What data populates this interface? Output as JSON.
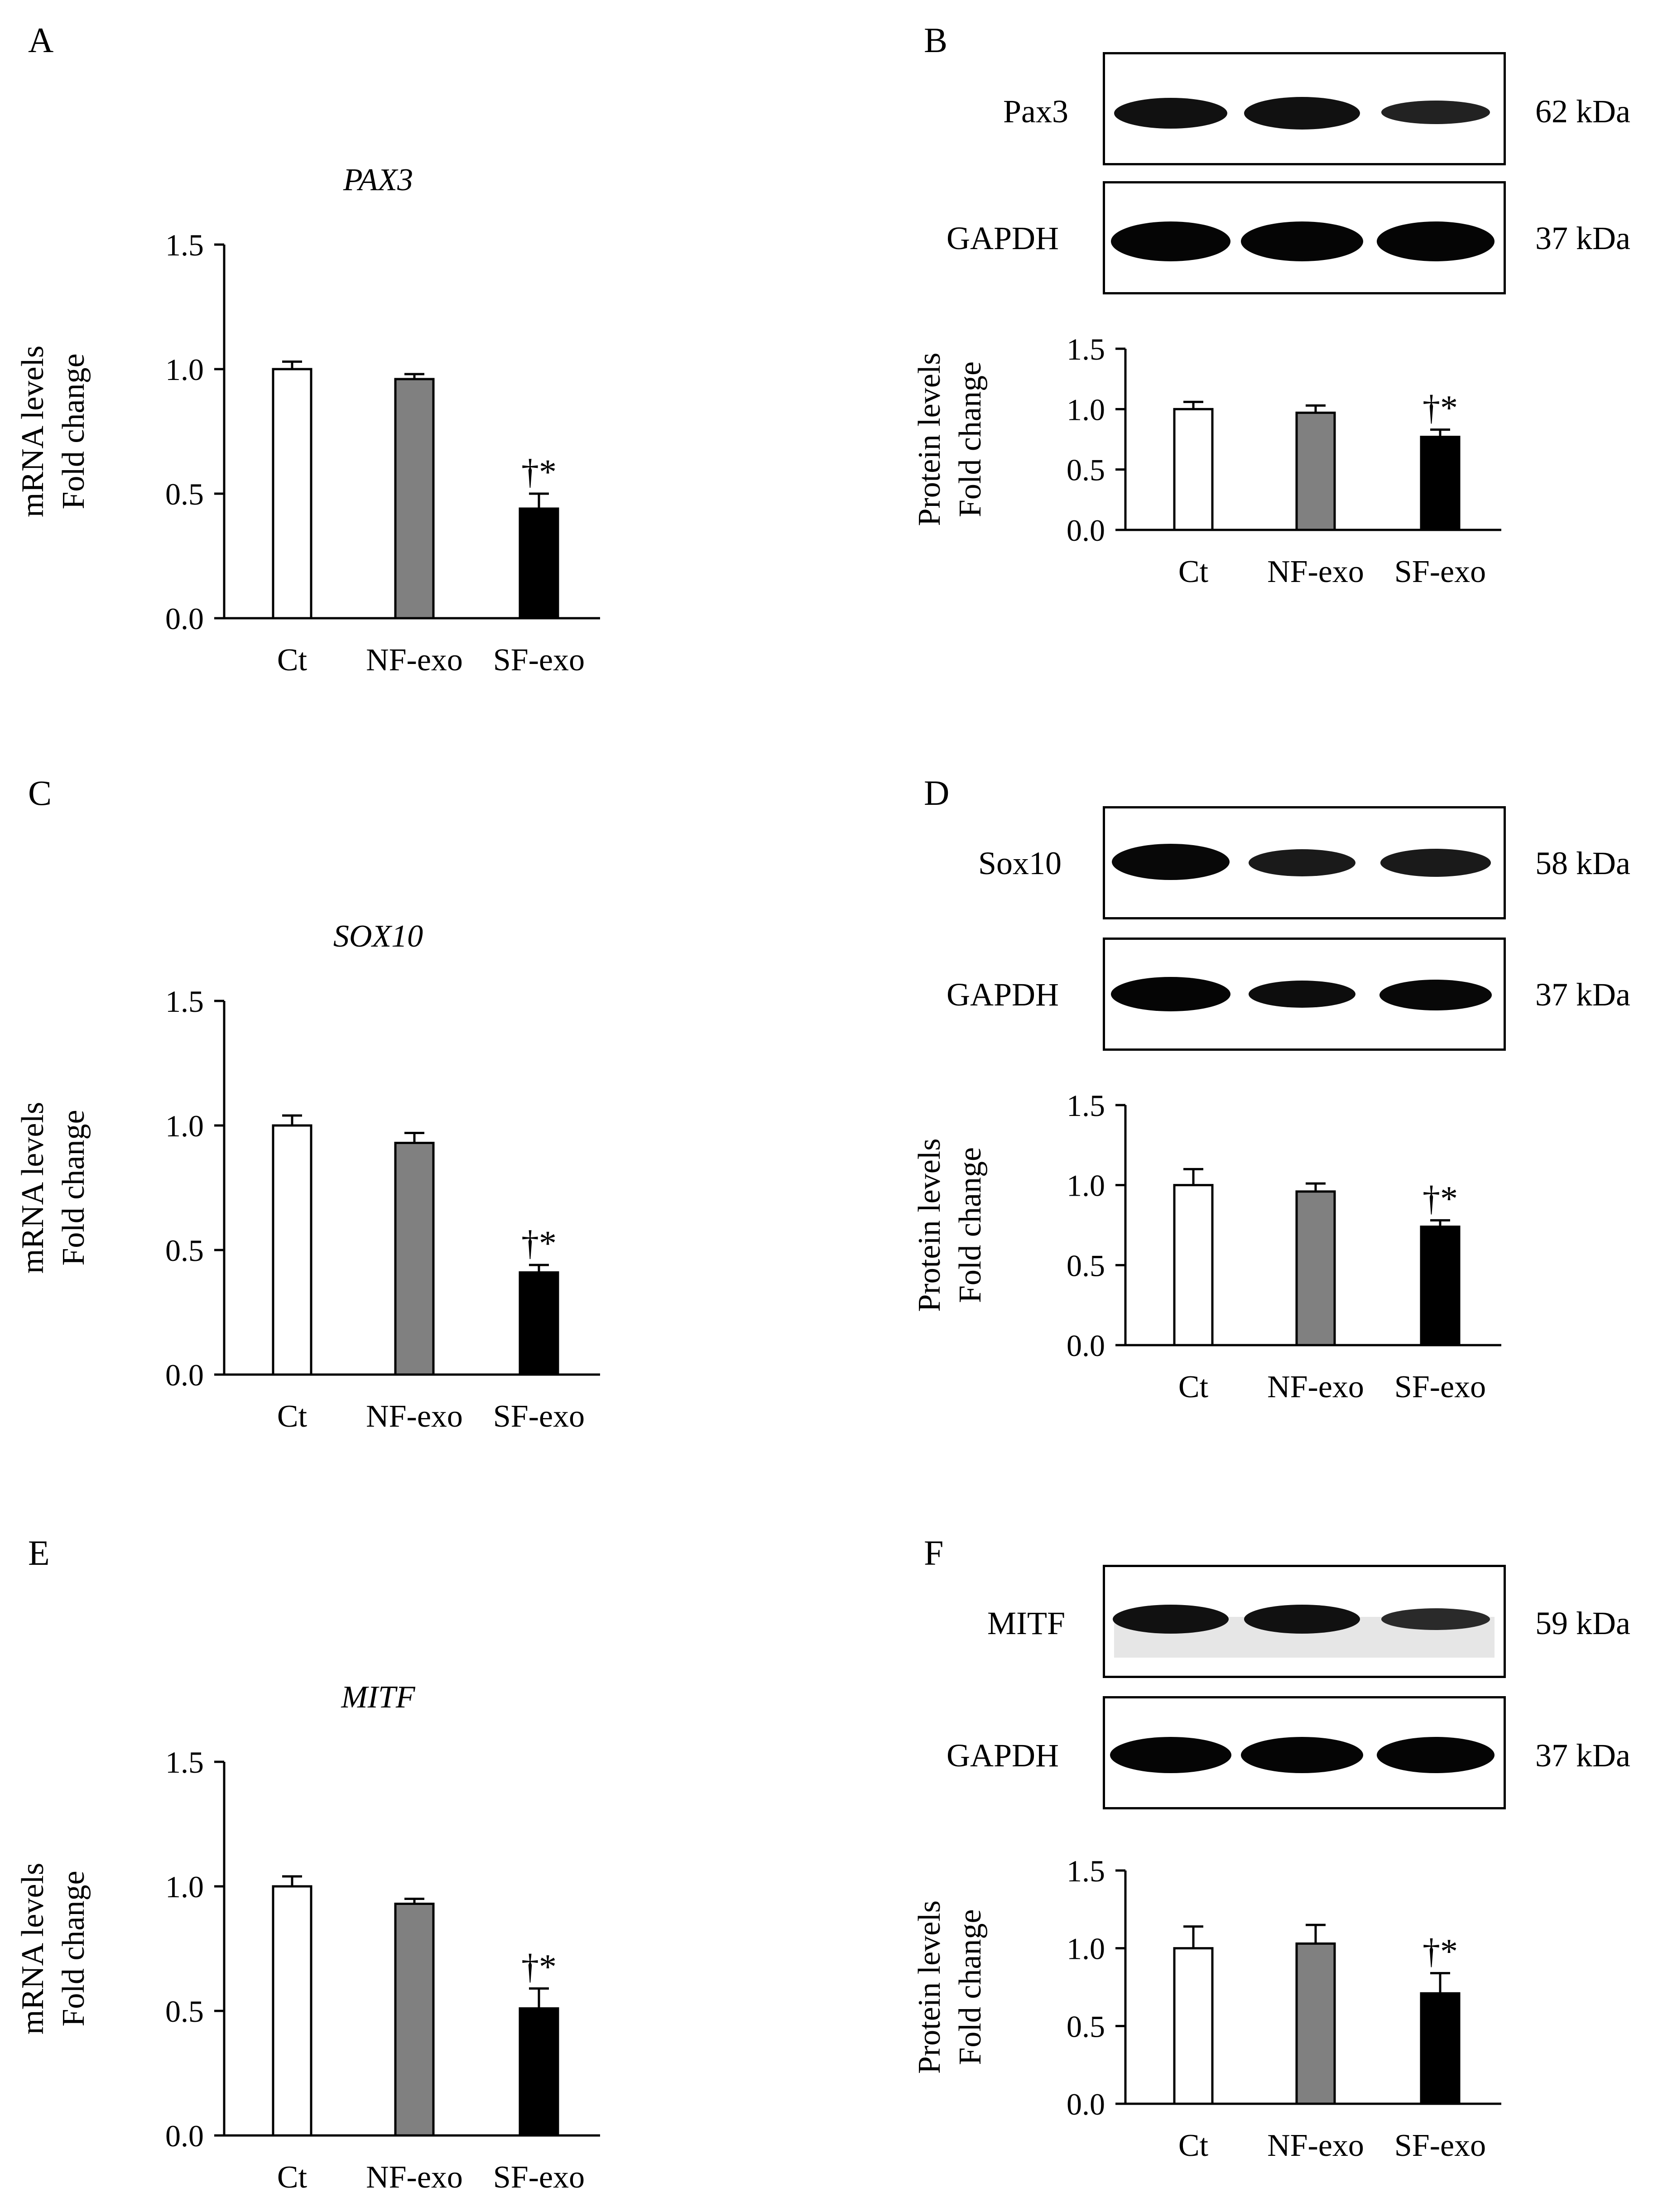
{
  "figure": {
    "panels": [
      {
        "letter": "A",
        "kind": "mrna",
        "gene": "PAX3"
      },
      {
        "letter": "B",
        "kind": "protein",
        "blots": [
          {
            "label": "Pax3",
            "kda": "62 kDa"
          },
          {
            "label": "GAPDH",
            "kda": "37 kDa"
          }
        ]
      },
      {
        "letter": "C",
        "kind": "mrna",
        "gene": "SOX10"
      },
      {
        "letter": "D",
        "kind": "protein",
        "blots": [
          {
            "label": "Sox10",
            "kda": "58 kDa"
          },
          {
            "label": "GAPDH",
            "kda": "37 kDa"
          }
        ]
      },
      {
        "letter": "E",
        "kind": "mrna",
        "gene": "MITF"
      },
      {
        "letter": "F",
        "kind": "protein",
        "blots": [
          {
            "label": "MITF",
            "kda": "59 kDa"
          },
          {
            "label": "GAPDH",
            "kda": "37 kDa"
          }
        ]
      }
    ]
  },
  "colors": {
    "Ct": "#ffffff",
    "NF-exo": "#808080",
    "SF-exo": "#000000"
  },
  "chart_data": [
    {
      "panel": "A",
      "type": "bar",
      "title": "PAX3",
      "title_italic": true,
      "ylabel": [
        "mRNA levels",
        "Fold change"
      ],
      "ylim": [
        0,
        1.5
      ],
      "yticks": [
        "0.0",
        "0.5",
        "1.0",
        "1.5"
      ],
      "categories": [
        "Ct",
        "NF-exo",
        "SF-exo"
      ],
      "values": [
        1.0,
        0.96,
        0.44
      ],
      "errors": [
        0.03,
        0.02,
        0.06
      ],
      "annotations": [
        "",
        "",
        "†*"
      ]
    },
    {
      "panel": "B",
      "type": "bar",
      "title": "",
      "ylabel": [
        "Protein levels",
        "Fold change"
      ],
      "ylim": [
        0,
        1.5
      ],
      "yticks": [
        "0.0",
        "0.5",
        "1.0",
        "1.5"
      ],
      "categories": [
        "Ct",
        "NF-exo",
        "SF-exo"
      ],
      "values": [
        1.0,
        0.97,
        0.77
      ],
      "errors": [
        0.06,
        0.06,
        0.06
      ],
      "annotations": [
        "",
        "",
        "†*"
      ]
    },
    {
      "panel": "C",
      "type": "bar",
      "title": "SOX10",
      "title_italic": true,
      "ylabel": [
        "mRNA levels",
        "Fold change"
      ],
      "ylim": [
        0,
        1.5
      ],
      "yticks": [
        "0.0",
        "0.5",
        "1.0",
        "1.5"
      ],
      "categories": [
        "Ct",
        "NF-exo",
        "SF-exo"
      ],
      "values": [
        1.0,
        0.93,
        0.41
      ],
      "errors": [
        0.04,
        0.04,
        0.03
      ],
      "annotations": [
        "",
        "",
        "†*"
      ]
    },
    {
      "panel": "D",
      "type": "bar",
      "title": "",
      "ylabel": [
        "Protein levels",
        "Fold change"
      ],
      "ylim": [
        0,
        1.5
      ],
      "yticks": [
        "0.0",
        "0.5",
        "1.0",
        "1.5"
      ],
      "categories": [
        "Ct",
        "NF-exo",
        "SF-exo"
      ],
      "values": [
        1.0,
        0.96,
        0.74
      ],
      "errors": [
        0.1,
        0.05,
        0.04
      ],
      "annotations": [
        "",
        "",
        "†*"
      ]
    },
    {
      "panel": "E",
      "type": "bar",
      "title": "MITF",
      "title_italic": true,
      "ylabel": [
        "mRNA levels",
        "Fold change"
      ],
      "ylim": [
        0,
        1.5
      ],
      "yticks": [
        "0.0",
        "0.5",
        "1.0",
        "1.5"
      ],
      "categories": [
        "Ct",
        "NF-exo",
        "SF-exo"
      ],
      "values": [
        1.0,
        0.93,
        0.51
      ],
      "errors": [
        0.04,
        0.02,
        0.08
      ],
      "annotations": [
        "",
        "",
        "†*"
      ]
    },
    {
      "panel": "F",
      "type": "bar",
      "title": "",
      "ylabel": [
        "Protein levels",
        "Fold change"
      ],
      "ylim": [
        0,
        1.5
      ],
      "yticks": [
        "0.0",
        "0.5",
        "1.0",
        "1.5"
      ],
      "categories": [
        "Ct",
        "NF-exo",
        "SF-exo"
      ],
      "values": [
        1.0,
        1.03,
        0.71
      ],
      "errors": [
        0.14,
        0.12,
        0.13
      ],
      "annotations": [
        "",
        "",
        "†*"
      ]
    }
  ]
}
